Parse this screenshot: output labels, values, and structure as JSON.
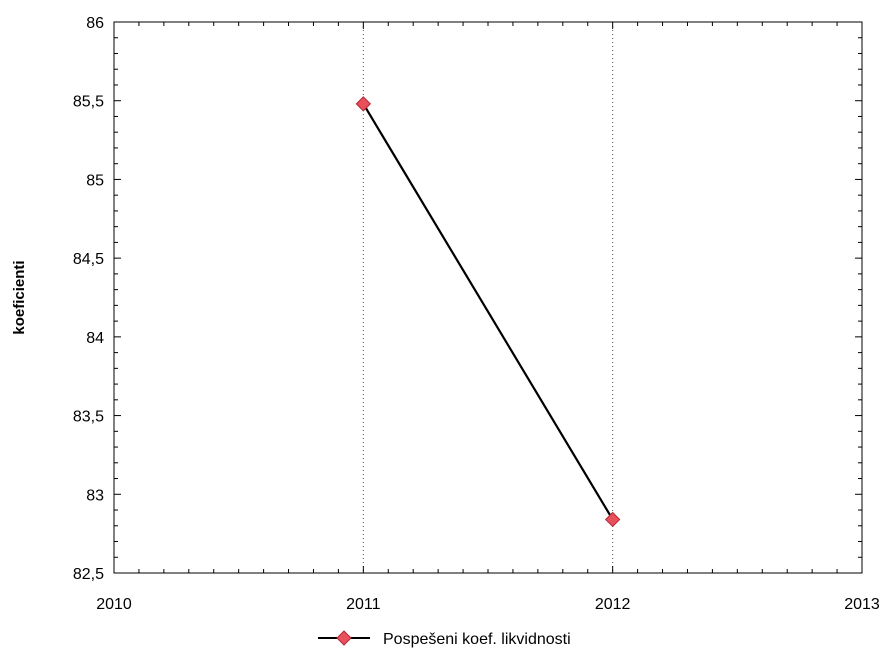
{
  "chart_data": {
    "type": "line",
    "title": "",
    "xlabel": "",
    "ylabel": "koeficienti",
    "xlim": [
      2010,
      2013
    ],
    "ylim": [
      82.5,
      86
    ],
    "x_ticks": [
      2010,
      2011,
      2012,
      2013
    ],
    "x_tick_labels": [
      "2010",
      "2011",
      "2012",
      "2013"
    ],
    "y_ticks": [
      82.5,
      83,
      83.5,
      84,
      84.5,
      85,
      85.5,
      86
    ],
    "y_tick_labels": [
      "82,5",
      "83",
      "83,5",
      "84",
      "84,5",
      "85",
      "85,5",
      "86"
    ],
    "grid": "vertical dotted at major x ticks",
    "legend_position": "bottom-center",
    "series": [
      {
        "name": "Pospešeni koef. likvidnosti",
        "x": [
          2011,
          2012
        ],
        "y": [
          85.48,
          82.84
        ],
        "line_color": "#000000",
        "marker": "diamond",
        "marker_color": "#e8505b"
      }
    ]
  }
}
